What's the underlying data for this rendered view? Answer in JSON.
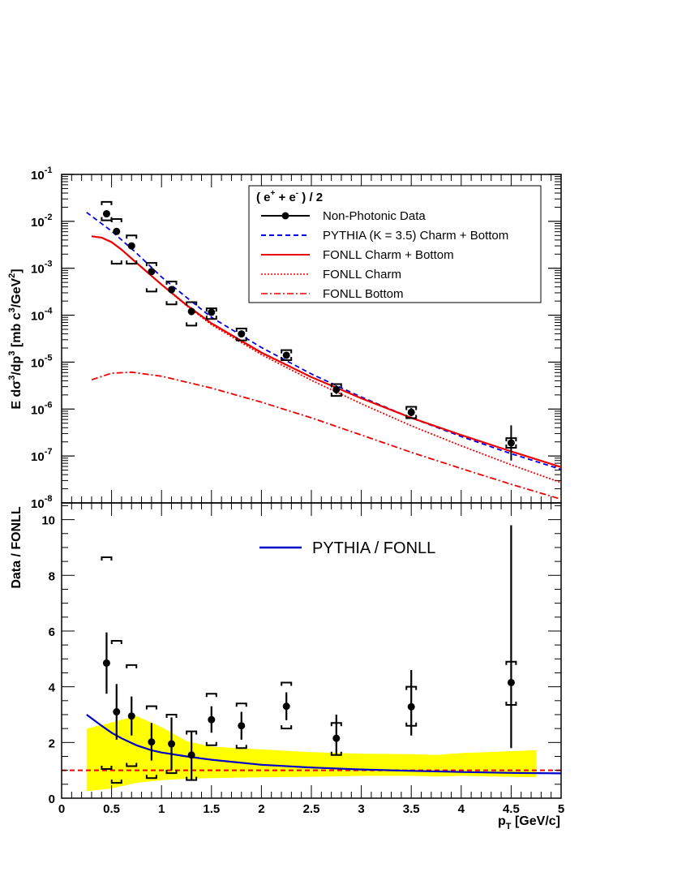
{
  "chart_data": [
    {
      "type": "line",
      "panel": "top",
      "ylabel_parts": [
        "E d",
        "σ",
        "3",
        "/dp",
        "3",
        " [mb c",
        "3",
        "/GeV",
        "2",
        "]"
      ],
      "y_scale": "log",
      "ylim": [
        1e-08,
        0.1
      ],
      "xlim": [
        0,
        5
      ],
      "y_tick_exponents": [
        "-8",
        "-7",
        "-6",
        "-5",
        "-4",
        "-3",
        "-2",
        "-1"
      ],
      "y_tick_base": "10",
      "legend": {
        "title_parts": [
          "( e",
          "+",
          " + e",
          "-",
          " ) / 2"
        ],
        "placement": "top-right",
        "entries": [
          "Non-Photonic Data",
          "PYTHIA (K = 3.5) Charm + Bottom",
          "FONLL Charm + Bottom",
          "FONLL Charm",
          "FONLL Bottom"
        ]
      },
      "data_points": [
        {
          "x": 0.45,
          "y": 0.0145,
          "stat_lo": 0.0125,
          "stat_hi": 0.0165,
          "sys_lo": 0.0105,
          "sys_hi": 0.026
        },
        {
          "x": 0.55,
          "y": 0.0061,
          "stat_lo": 0.0052,
          "stat_hi": 0.007,
          "sys_lo": 0.00125,
          "sys_hi": 0.0112
        },
        {
          "x": 0.7,
          "y": 0.003,
          "stat_lo": 0.0026,
          "stat_hi": 0.0035,
          "sys_lo": 0.00125,
          "sys_hi": 0.005
        },
        {
          "x": 0.9,
          "y": 0.00085,
          "stat_lo": 0.00072,
          "stat_hi": 0.001,
          "sys_lo": 0.00032,
          "sys_hi": 0.0013
        },
        {
          "x": 1.1,
          "y": 0.00035,
          "stat_lo": 0.00029,
          "stat_hi": 0.00042,
          "sys_lo": 0.00017,
          "sys_hi": 0.00052
        },
        {
          "x": 1.3,
          "y": 0.00012,
          "stat_lo": 0.0001,
          "stat_hi": 0.000145,
          "sys_lo": 6e-05,
          "sys_hi": 0.00019
        },
        {
          "x": 1.5,
          "y": 0.000115,
          "stat_lo": 0.0001,
          "stat_hi": 0.00013,
          "sys_lo": 8.3e-05,
          "sys_hi": 0.00014
        },
        {
          "x": 1.8,
          "y": 4e-05,
          "stat_lo": 3.5e-05,
          "stat_hi": 4.6e-05,
          "sys_lo": 2.9e-05,
          "sys_hi": 5.2e-05
        },
        {
          "x": 2.25,
          "y": 1.4e-05,
          "stat_lo": 1.25e-05,
          "stat_hi": 1.57e-05,
          "sys_lo": 1.1e-05,
          "sys_hi": 1.8e-05
        },
        {
          "x": 2.75,
          "y": 2.6e-06,
          "stat_lo": 2.1e-06,
          "stat_hi": 3.2e-06,
          "sys_lo": 1.9e-06,
          "sys_hi": 3.4e-06
        },
        {
          "x": 3.5,
          "y": 8.5e-07,
          "stat_lo": 7e-07,
          "stat_hi": 1.05e-06,
          "sys_lo": 6.4e-07,
          "sys_hi": 1.12e-06
        },
        {
          "x": 4.5,
          "y": 1.9e-07,
          "stat_lo": 8e-08,
          "stat_hi": 4.5e-07,
          "sys_lo": 1.5e-07,
          "sys_hi": 2.4e-07
        }
      ],
      "curves": [
        {
          "name": "PYTHIA (K = 3.5) Charm + Bottom",
          "color": "#0000ee",
          "style": "dashed",
          "points": [
            [
              0.25,
              0.0155
            ],
            [
              0.5,
              0.0062
            ],
            [
              0.75,
              0.0021
            ],
            [
              1.0,
              0.00065
            ],
            [
              1.25,
              0.00024
            ],
            [
              1.5,
              9e-05
            ],
            [
              2.0,
              2.05e-05
            ],
            [
              2.5,
              5.6e-06
            ],
            [
              3.0,
              1.8e-06
            ],
            [
              3.5,
              6.5e-07
            ],
            [
              4.0,
              2.6e-07
            ],
            [
              4.5,
              1.12e-07
            ],
            [
              5.0,
              5.2e-08
            ]
          ]
        },
        {
          "name": "FONLL Charm + Bottom",
          "color": "#ee0000",
          "style": "solid",
          "points": [
            [
              0.3,
              0.0048
            ],
            [
              0.4,
              0.0045
            ],
            [
              0.5,
              0.0036
            ],
            [
              0.6,
              0.0025
            ],
            [
              0.75,
              0.0013
            ],
            [
              1.0,
              0.00045
            ],
            [
              1.25,
              0.000165
            ],
            [
              1.5,
              6.7e-05
            ],
            [
              2.0,
              1.6e-05
            ],
            [
              2.5,
              4.8e-06
            ],
            [
              3.0,
              1.7e-06
            ],
            [
              3.5,
              6.5e-07
            ],
            [
              4.0,
              2.8e-07
            ],
            [
              4.5,
              1.25e-07
            ],
            [
              5.0,
              5.8e-08
            ]
          ]
        },
        {
          "name": "FONLL Charm",
          "color": "#ee0000",
          "style": "dotted",
          "points": [
            [
              0.3,
              0.0048
            ],
            [
              0.4,
              0.0045
            ],
            [
              0.5,
              0.0036
            ],
            [
              0.6,
              0.0025
            ],
            [
              0.75,
              0.0013
            ],
            [
              1.0,
              0.00045
            ],
            [
              1.25,
              0.00016
            ],
            [
              1.5,
              6.3e-05
            ],
            [
              2.0,
              1.45e-05
            ],
            [
              2.5,
              4.1e-06
            ],
            [
              3.0,
              1.3e-06
            ],
            [
              3.5,
              4.4e-07
            ],
            [
              4.0,
              1.65e-07
            ],
            [
              4.5,
              6.5e-08
            ],
            [
              5.0,
              2.7e-08
            ]
          ]
        },
        {
          "name": "FONLL Bottom",
          "color": "#ee0000",
          "style": "dashdot",
          "points": [
            [
              0.3,
              4.2e-06
            ],
            [
              0.5,
              5.8e-06
            ],
            [
              0.7,
              6.1e-06
            ],
            [
              1.0,
              5e-06
            ],
            [
              1.5,
              2.8e-06
            ],
            [
              2.0,
              1.4e-06
            ],
            [
              2.5,
              6.5e-07
            ],
            [
              3.0,
              2.8e-07
            ],
            [
              3.5,
              1.2e-07
            ],
            [
              4.0,
              5.4e-08
            ],
            [
              4.5,
              2.5e-08
            ],
            [
              5.0,
              1.2e-08
            ]
          ]
        }
      ]
    },
    {
      "type": "line",
      "panel": "bottom",
      "ylabel": "Data / FONLL",
      "xlabel_parts": [
        "p",
        "T",
        " [GeV/c]"
      ],
      "xlim": [
        0,
        5
      ],
      "ylim": [
        0,
        10.6
      ],
      "x_ticks": [
        "0",
        "0.5",
        "1",
        "1.5",
        "2",
        "2.5",
        "3",
        "3.5",
        "4",
        "4.5",
        "5"
      ],
      "y_ticks": [
        "0",
        "2",
        "4",
        "6",
        "8",
        "10"
      ],
      "legend": {
        "placement": "top-center",
        "entries": [
          "PYTHIA / FONLL"
        ]
      },
      "reference_line": {
        "y": 1.0,
        "color": "#ee0000",
        "style": "dashed"
      },
      "uncertainty_band": {
        "color": "#ffff00",
        "x": [
          0.25,
          0.5,
          0.75,
          1.0,
          1.25,
          1.5,
          1.75,
          2.0,
          2.5,
          3.0,
          3.5,
          3.75,
          4.0,
          4.75
        ],
        "upper": [
          2.5,
          2.72,
          2.95,
          2.55,
          2.05,
          1.85,
          1.8,
          1.75,
          1.65,
          1.6,
          1.58,
          1.55,
          1.62,
          1.72
        ],
        "lower": [
          0.25,
          0.35,
          0.55,
          0.65,
          0.7,
          0.72,
          0.74,
          0.75,
          0.77,
          0.8,
          0.8,
          0.78,
          0.8,
          0.75
        ]
      },
      "data_points": [
        {
          "x": 0.45,
          "y": 4.85,
          "stat_lo": 3.75,
          "stat_hi": 5.95,
          "sys_lo": 1.05,
          "sys_hi": 8.65
        },
        {
          "x": 0.55,
          "y": 3.1,
          "stat_lo": 2.1,
          "stat_hi": 4.1,
          "sys_lo": 0.55,
          "sys_hi": 5.65
        },
        {
          "x": 0.7,
          "y": 2.95,
          "stat_lo": 2.25,
          "stat_hi": 3.65,
          "sys_lo": 1.15,
          "sys_hi": 4.78
        },
        {
          "x": 0.9,
          "y": 2.02,
          "stat_lo": 1.35,
          "stat_hi": 2.7,
          "sys_lo": 0.72,
          "sys_hi": 3.3
        },
        {
          "x": 1.1,
          "y": 1.95,
          "stat_lo": 1.0,
          "stat_hi": 2.9,
          "sys_lo": 0.9,
          "sys_hi": 3.0
        },
        {
          "x": 1.3,
          "y": 1.55,
          "stat_lo": 0.65,
          "stat_hi": 2.4,
          "sys_lo": 0.65,
          "sys_hi": 2.4
        },
        {
          "x": 1.5,
          "y": 2.82,
          "stat_lo": 2.35,
          "stat_hi": 3.3,
          "sys_lo": 1.9,
          "sys_hi": 3.75
        },
        {
          "x": 1.8,
          "y": 2.6,
          "stat_lo": 2.1,
          "stat_hi": 3.1,
          "sys_lo": 1.8,
          "sys_hi": 3.4
        },
        {
          "x": 2.25,
          "y": 3.3,
          "stat_lo": 2.8,
          "stat_hi": 3.8,
          "sys_lo": 2.5,
          "sys_hi": 4.15
        },
        {
          "x": 2.75,
          "y": 2.15,
          "stat_lo": 1.55,
          "stat_hi": 3.0,
          "sys_lo": 1.55,
          "sys_hi": 2.7
        },
        {
          "x": 3.5,
          "y": 3.28,
          "stat_lo": 2.25,
          "stat_hi": 4.6,
          "sys_lo": 2.6,
          "sys_hi": 4.0
        },
        {
          "x": 4.5,
          "y": 4.15,
          "stat_lo": 1.8,
          "stat_hi": 9.8,
          "sys_lo": 3.35,
          "sys_hi": 4.9
        }
      ],
      "curves": [
        {
          "name": "PYTHIA / FONLL",
          "color": "#0000cc",
          "style": "solid",
          "points": [
            [
              0.25,
              3.0
            ],
            [
              0.4,
              2.6
            ],
            [
              0.5,
              2.35
            ],
            [
              0.6,
              2.15
            ],
            [
              0.75,
              1.9
            ],
            [
              0.9,
              1.72
            ],
            [
              1.0,
              1.64
            ],
            [
              1.25,
              1.5
            ],
            [
              1.5,
              1.38
            ],
            [
              2.0,
              1.2
            ],
            [
              2.5,
              1.1
            ],
            [
              3.0,
              1.03
            ],
            [
              3.5,
              0.98
            ],
            [
              4.0,
              0.94
            ],
            [
              4.5,
              0.91
            ],
            [
              5.0,
              0.89
            ]
          ]
        }
      ]
    }
  ]
}
